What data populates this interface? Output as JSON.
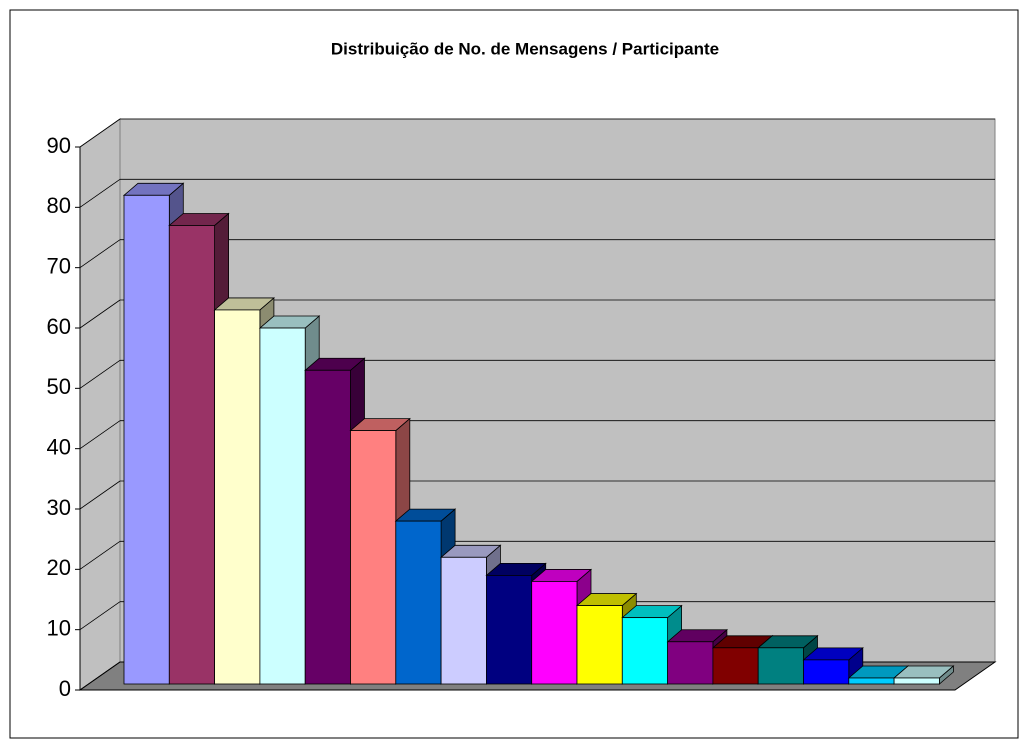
{
  "chart_data": {
    "type": "bar3d",
    "title": "Distribuição de No. de Mensagens / Participante",
    "categories": [
      null,
      null,
      null,
      null,
      null,
      null,
      null,
      null,
      null,
      null,
      null,
      null,
      null,
      null,
      null,
      null,
      null,
      null
    ],
    "values": [
      81,
      76,
      62,
      59,
      52,
      42,
      27,
      21,
      18,
      17,
      13,
      11,
      7,
      6,
      6,
      4,
      1,
      1
    ],
    "colors": [
      "#9999ff",
      "#993366",
      "#ffffcc",
      "#ccffff",
      "#660066",
      "#ff8080",
      "#0066cc",
      "#ccccff",
      "#000080",
      "#ff00ff",
      "#ffff00",
      "#00ffff",
      "#800080",
      "#800000",
      "#008080",
      "#0000ff",
      "#00ccff",
      "#ccffff"
    ],
    "ylim": [
      0,
      90
    ],
    "yticks": [
      0,
      10,
      20,
      30,
      40,
      50,
      60,
      70,
      80,
      90
    ],
    "grid": true
  }
}
